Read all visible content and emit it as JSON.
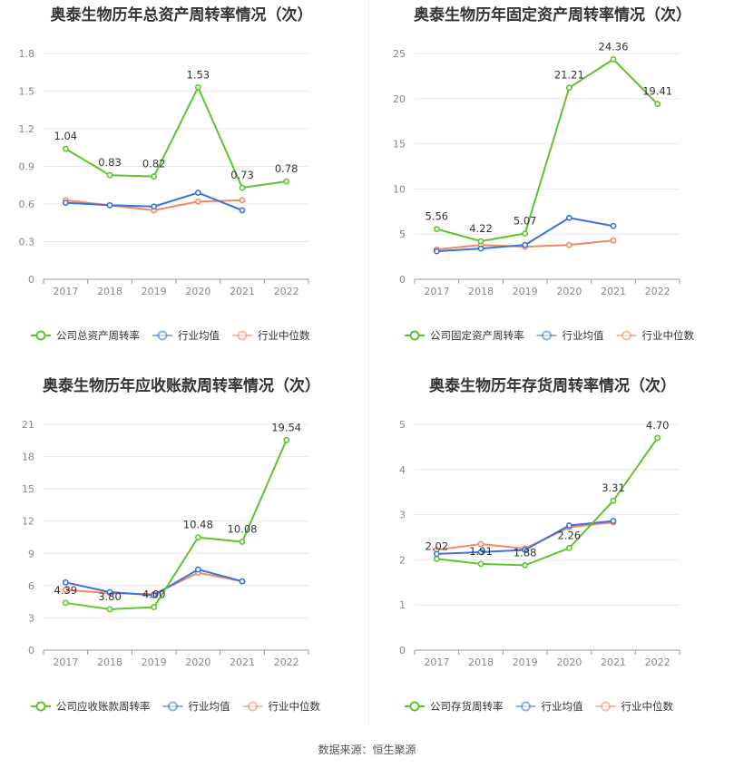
{
  "source": "数据来源：恒生聚源",
  "legend": [
    "行业均值",
    "行业中位数"
  ],
  "colors": {
    "company": "#5ec42e",
    "avg": "#3b73db",
    "median": "#f08a62"
  },
  "chart_data": [
    {
      "type": "line",
      "title": "奥泰生物历年总资产周转率情况（次）",
      "categories": [
        "2017",
        "2018",
        "2019",
        "2020",
        "2021",
        "2022"
      ],
      "ylim": [
        0,
        1.8
      ],
      "yticks": [
        "0",
        "0.3",
        "0.6",
        "0.9",
        "1.2",
        "1.5",
        "1.8"
      ],
      "series": [
        {
          "name": "公司总资产周转率",
          "values": [
            1.04,
            0.83,
            0.82,
            1.53,
            0.73,
            0.78
          ],
          "labels": [
            "1.04",
            "0.83",
            "0.82",
            "1.53",
            "0.73",
            "0.78"
          ]
        },
        {
          "name": "行业均值",
          "values": [
            0.61,
            0.59,
            0.58,
            0.69,
            0.55,
            null
          ]
        },
        {
          "name": "行业中位数",
          "values": [
            0.63,
            0.59,
            0.55,
            0.62,
            0.63,
            null
          ]
        }
      ]
    },
    {
      "type": "line",
      "title": "奥泰生物历年固定资产周转率情况（次）",
      "categories": [
        "2017",
        "2018",
        "2019",
        "2020",
        "2021",
        "2022"
      ],
      "ylim": [
        0,
        25
      ],
      "yticks": [
        "0",
        "5",
        "10",
        "15",
        "20",
        "25"
      ],
      "series": [
        {
          "name": "公司固定资产周转率",
          "values": [
            5.56,
            4.22,
            5.07,
            21.21,
            24.36,
            19.41
          ],
          "labels": [
            "5.56",
            "4.22",
            "5.07",
            "21.21",
            "24.36",
            "19.41"
          ]
        },
        {
          "name": "行业均值",
          "values": [
            3.1,
            3.4,
            3.8,
            6.8,
            5.9,
            null
          ]
        },
        {
          "name": "行业中位数",
          "values": [
            3.3,
            3.8,
            3.6,
            3.8,
            4.3,
            null
          ]
        }
      ]
    },
    {
      "type": "line",
      "title": "奥泰生物历年应收账款周转率情况（次）",
      "categories": [
        "2017",
        "2018",
        "2019",
        "2020",
        "2021",
        "2022"
      ],
      "ylim": [
        0,
        21
      ],
      "yticks": [
        "0",
        "3",
        "6",
        "9",
        "12",
        "15",
        "18",
        "21"
      ],
      "series": [
        {
          "name": "公司应收账款周转率",
          "values": [
            4.39,
            3.8,
            4.0,
            10.48,
            10.08,
            19.54
          ],
          "labels": [
            "4.39",
            "3.80",
            "4.00",
            "10.48",
            "10.08",
            "19.54"
          ]
        },
        {
          "name": "行业均值",
          "values": [
            6.3,
            5.4,
            5.1,
            7.5,
            6.4,
            null
          ]
        },
        {
          "name": "行业中位数",
          "values": [
            5.6,
            5.3,
            5.2,
            7.2,
            6.4,
            null
          ]
        }
      ]
    },
    {
      "type": "line",
      "title": "奥泰生物历年存货周转率情况（次）",
      "categories": [
        "2017",
        "2018",
        "2019",
        "2020",
        "2021",
        "2022"
      ],
      "ylim": [
        0,
        5
      ],
      "yticks": [
        "0",
        "1",
        "2",
        "3",
        "4",
        "5"
      ],
      "series": [
        {
          "name": "公司存货周转率",
          "values": [
            2.02,
            1.91,
            1.88,
            2.26,
            3.31,
            4.7
          ],
          "labels": [
            "2.02",
            "1.91",
            "1.88",
            "2.26",
            "3.31",
            "4.70"
          ]
        },
        {
          "name": "行业均值",
          "values": [
            2.13,
            2.17,
            2.22,
            2.76,
            2.86,
            null
          ]
        },
        {
          "name": "行业中位数",
          "values": [
            2.22,
            2.35,
            2.25,
            2.72,
            2.83,
            null
          ]
        }
      ]
    }
  ]
}
